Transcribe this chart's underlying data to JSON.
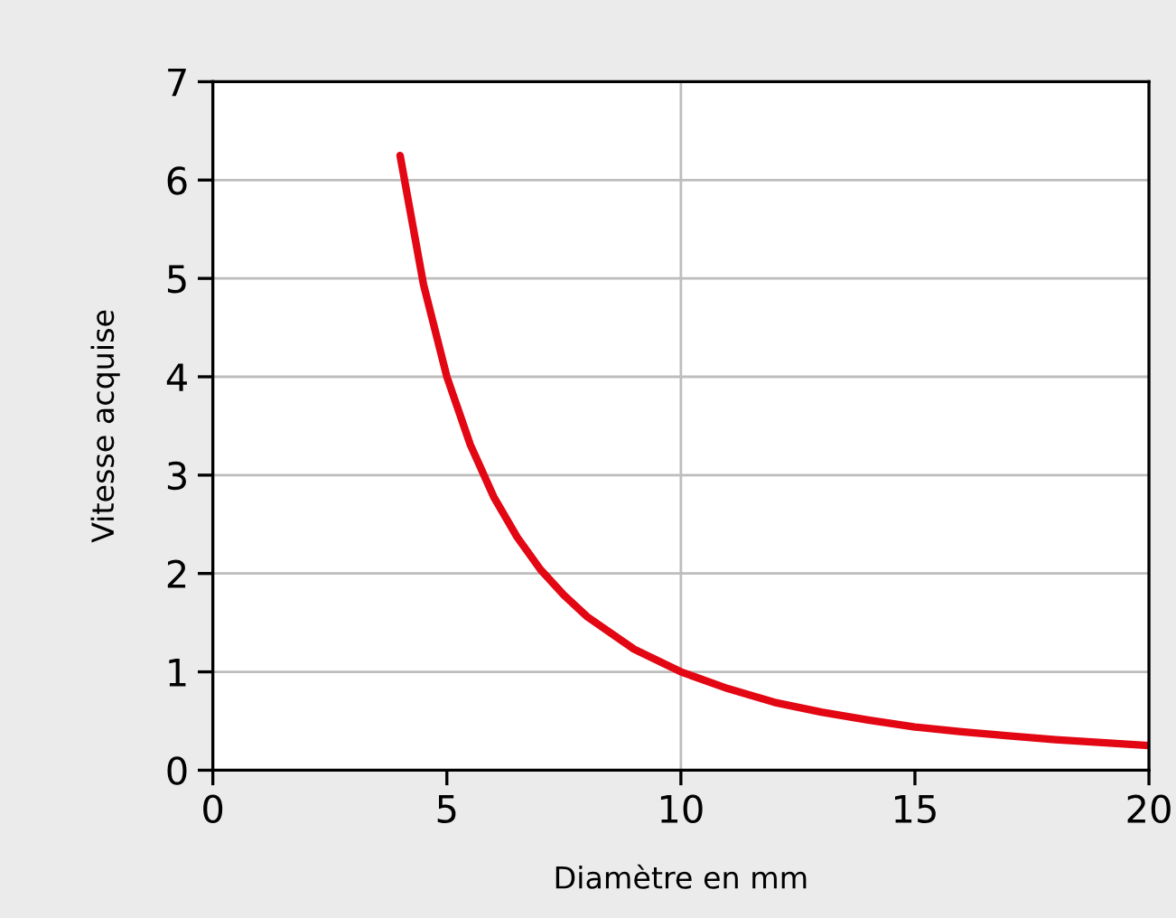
{
  "chart_data": {
    "type": "line",
    "xlabel": "Diamètre en mm",
    "ylabel": "Vitesse acquise",
    "xlim": [
      0,
      20
    ],
    "xticks": [
      0,
      5,
      10,
      15,
      20
    ],
    "ylim": [
      0,
      7
    ],
    "yticks": [
      0,
      1,
      2,
      3,
      4,
      5,
      6,
      7
    ],
    "grid": "y",
    "legend": false,
    "marker": "none",
    "line_style": "solid",
    "ref_lines": [
      {
        "axis": "x",
        "value": 10,
        "color": "#bdbdbd"
      }
    ],
    "series": [
      {
        "color": "#e30613",
        "x": [
          4,
          4.5,
          5,
          5.5,
          6,
          6.5,
          7,
          7.5,
          8,
          9,
          10,
          11,
          12,
          13,
          14,
          15,
          16,
          17,
          18,
          19,
          20
        ],
        "values": [
          6.25,
          4.94,
          4.0,
          3.31,
          2.78,
          2.37,
          2.04,
          1.78,
          1.56,
          1.23,
          1.0,
          0.83,
          0.69,
          0.59,
          0.51,
          0.44,
          0.39,
          0.35,
          0.31,
          0.28,
          0.25
        ]
      }
    ]
  }
}
